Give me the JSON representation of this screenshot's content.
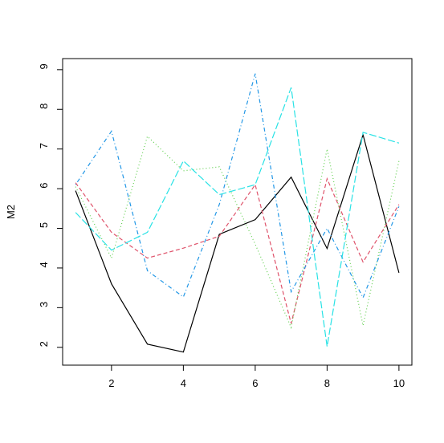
{
  "chart_data": {
    "type": "line",
    "y_label": "M2",
    "x": [
      1,
      2,
      3,
      4,
      5,
      6,
      7,
      8,
      9,
      10
    ],
    "xlim": [
      0.64,
      10.36
    ],
    "xticks": [
      2,
      4,
      6,
      8,
      10
    ],
    "ylim": [
      1.55,
      9.28
    ],
    "yticks": [
      2,
      3,
      4,
      5,
      6,
      7,
      8,
      9
    ],
    "series": [
      {
        "color": "#000000",
        "linestyle": "solid",
        "values": [
          5.95,
          3.6,
          2.08,
          1.88,
          4.85,
          5.22,
          6.29,
          4.49,
          7.36,
          3.88
        ]
      },
      {
        "color": "#DF536B",
        "linestyle": "dashed",
        "values": [
          6.15,
          4.9,
          4.25,
          4.5,
          4.8,
          6.1,
          2.6,
          6.25,
          4.15,
          5.6
        ]
      },
      {
        "color": "#61D04F",
        "linestyle": "dotted",
        "values": [
          6.05,
          4.25,
          7.32,
          6.45,
          6.55,
          4.6,
          2.5,
          7.0,
          2.55,
          6.7
        ]
      },
      {
        "color": "#2297E6",
        "linestyle": "dotdash",
        "values": [
          6.1,
          7.45,
          3.93,
          3.27,
          5.6,
          8.9,
          3.4,
          5.0,
          3.25,
          5.55
        ]
      },
      {
        "color": "#28E2E5",
        "linestyle": "longdash",
        "values": [
          5.4,
          4.45,
          4.9,
          6.7,
          5.85,
          6.1,
          8.55,
          2.02,
          7.42,
          7.15
        ]
      }
    ]
  }
}
